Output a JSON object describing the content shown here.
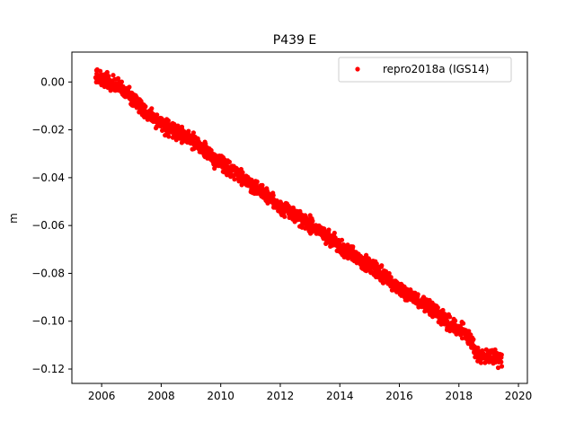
{
  "chart_data": {
    "type": "scatter",
    "title": "P439 E",
    "xlabel": "",
    "ylabel": "m",
    "xlim": [
      2005.0,
      2020.3
    ],
    "ylim": [
      -0.126,
      0.0125
    ],
    "xticks": [
      2006,
      2008,
      2010,
      2012,
      2014,
      2016,
      2018,
      2020
    ],
    "yticks": [
      0.0,
      -0.02,
      -0.04,
      -0.06,
      -0.08,
      -0.1,
      -0.12
    ],
    "ytick_labels": [
      "0.00",
      "−0.02",
      "−0.04",
      "−0.06",
      "−0.08",
      "−0.10",
      "−0.12"
    ],
    "grid": false,
    "legend_position": "top-right",
    "series": [
      {
        "name": "repro2018a (IGS14)",
        "color": "#ff0000",
        "marker": "circle",
        "trend": [
          [
            2005.8,
            0.002
          ],
          [
            2006.5,
            -0.001
          ],
          [
            2007.0,
            -0.006
          ],
          [
            2007.6,
            -0.014
          ],
          [
            2008.2,
            -0.019
          ],
          [
            2009.0,
            -0.024
          ],
          [
            2009.8,
            -0.032
          ],
          [
            2010.5,
            -0.038
          ],
          [
            2011.3,
            -0.045
          ],
          [
            2012.0,
            -0.052
          ],
          [
            2012.7,
            -0.057
          ],
          [
            2013.3,
            -0.062
          ],
          [
            2014.0,
            -0.069
          ],
          [
            2014.8,
            -0.075
          ],
          [
            2015.5,
            -0.081
          ],
          [
            2016.2,
            -0.088
          ],
          [
            2017.0,
            -0.094
          ],
          [
            2017.7,
            -0.101
          ],
          [
            2018.3,
            -0.106
          ],
          [
            2018.6,
            -0.114
          ],
          [
            2019.2,
            -0.115
          ],
          [
            2019.45,
            -0.116
          ]
        ],
        "scatter_amplitude": 0.003
      }
    ]
  }
}
